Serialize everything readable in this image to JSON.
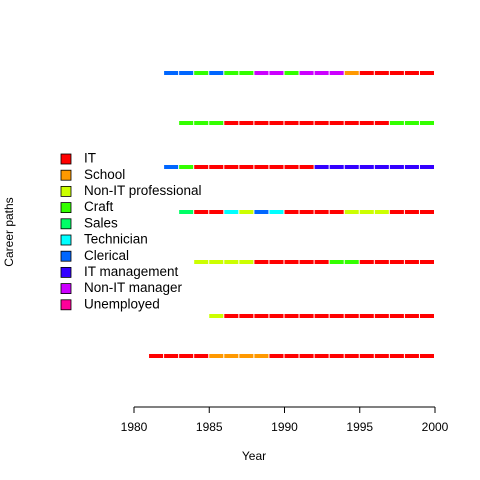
{
  "chart_data": {
    "type": "sequence",
    "xlabel": "Year",
    "ylabel": "Career paths",
    "xlim": [
      1980,
      2000
    ],
    "xticks": [
      1980,
      1985,
      1990,
      1995,
      2000
    ],
    "series": [
      {
        "name": "IT",
        "color": "#FF0000"
      },
      {
        "name": "School",
        "color": "#FF9900"
      },
      {
        "name": "Non-IT professional",
        "color": "#CCFF00"
      },
      {
        "name": "Craft",
        "color": "#33FF00"
      },
      {
        "name": "Sales",
        "color": "#00FF66"
      },
      {
        "name": "Technician",
        "color": "#00FFFF"
      },
      {
        "name": "Clerical",
        "color": "#0066FF"
      },
      {
        "name": "IT management",
        "color": "#3300FF"
      },
      {
        "name": "Non-IT manager",
        "color": "#CC00FF"
      },
      {
        "name": "Unemployed",
        "color": "#FF0099"
      }
    ],
    "sequences": [
      [
        {
          "state": "Clerical",
          "start": 1982,
          "end": 1984
        },
        {
          "state": "Craft",
          "start": 1984,
          "end": 1985
        },
        {
          "state": "Clerical",
          "start": 1985,
          "end": 1986
        },
        {
          "state": "Craft",
          "start": 1986,
          "end": 1988
        },
        {
          "state": "Non-IT manager",
          "start": 1988,
          "end": 1990
        },
        {
          "state": "Craft",
          "start": 1990,
          "end": 1991
        },
        {
          "state": "Non-IT manager",
          "start": 1991,
          "end": 1994
        },
        {
          "state": "School",
          "start": 1994,
          "end": 1995
        },
        {
          "state": "IT",
          "start": 1995,
          "end": 2000
        }
      ],
      [
        {
          "state": "Craft",
          "start": 1983,
          "end": 1986
        },
        {
          "state": "IT",
          "start": 1986,
          "end": 1997
        },
        {
          "state": "Craft",
          "start": 1997,
          "end": 2000
        }
      ],
      [
        {
          "state": "Clerical",
          "start": 1982,
          "end": 1983
        },
        {
          "state": "Craft",
          "start": 1983,
          "end": 1984
        },
        {
          "state": "IT",
          "start": 1984,
          "end": 1992
        },
        {
          "state": "IT management",
          "start": 1992,
          "end": 2000
        }
      ],
      [
        {
          "state": "Sales",
          "start": 1983,
          "end": 1984
        },
        {
          "state": "IT",
          "start": 1984,
          "end": 1986
        },
        {
          "state": "Technician",
          "start": 1986,
          "end": 1987
        },
        {
          "state": "Non-IT professional",
          "start": 1987,
          "end": 1988
        },
        {
          "state": "Clerical",
          "start": 1988,
          "end": 1989
        },
        {
          "state": "Technician",
          "start": 1989,
          "end": 1990
        },
        {
          "state": "IT",
          "start": 1990,
          "end": 1994
        },
        {
          "state": "Non-IT professional",
          "start": 1994,
          "end": 1997
        },
        {
          "state": "IT",
          "start": 1997,
          "end": 2000
        }
      ],
      [
        {
          "state": "Non-IT professional",
          "start": 1984,
          "end": 1988
        },
        {
          "state": "IT",
          "start": 1988,
          "end": 1993
        },
        {
          "state": "Craft",
          "start": 1993,
          "end": 1995
        },
        {
          "state": "IT",
          "start": 1995,
          "end": 2000
        }
      ],
      [
        {
          "state": "Non-IT professional",
          "start": 1985,
          "end": 1986
        },
        {
          "state": "IT",
          "start": 1986,
          "end": 2000
        }
      ],
      [
        {
          "state": "IT",
          "start": 1981,
          "end": 1985
        },
        {
          "state": "School",
          "start": 1985,
          "end": 1989
        },
        {
          "state": "IT",
          "start": 1989,
          "end": 2000
        }
      ]
    ]
  }
}
